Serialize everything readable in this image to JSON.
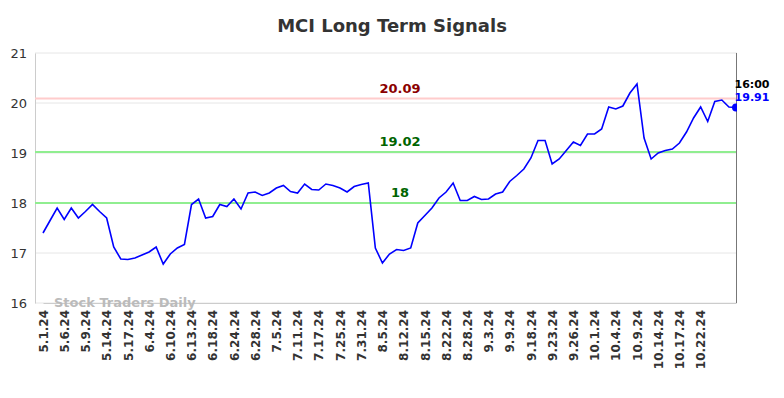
{
  "chart_data": {
    "type": "line",
    "title": "MCI Long Term Signals",
    "watermark": "Stock Traders Daily",
    "last_time": "16:00",
    "color": "#0000ff",
    "categories": [
      "5.1.24",
      null,
      null,
      "5.6.24",
      null,
      null,
      "5.9.24",
      null,
      null,
      "5.14.24",
      null,
      null,
      "5.17.24",
      null,
      null,
      "6.4.24",
      null,
      null,
      "6.10.24",
      null,
      null,
      "6.13.24",
      null,
      null,
      "6.18.24",
      null,
      null,
      "6.24.24",
      null,
      null,
      "6.28.24",
      null,
      null,
      "7.5.24",
      null,
      null,
      "7.11.24",
      null,
      null,
      "7.17.24",
      null,
      null,
      "7.25.24",
      null,
      null,
      "7.31.24",
      null,
      null,
      "8.5.24",
      null,
      null,
      "8.12.24",
      null,
      null,
      "8.15.24",
      null,
      null,
      "8.22.24",
      null,
      null,
      "8.28.24",
      null,
      null,
      "9.3.24",
      null,
      null,
      "9.9.24",
      null,
      null,
      "9.18.24",
      null,
      null,
      "9.23.24",
      null,
      null,
      "9.26.24",
      null,
      null,
      "10.1.24",
      null,
      null,
      "10.4.24",
      null,
      null,
      "10.9.24",
      null,
      null,
      "10.14.24",
      null,
      null,
      "10.17.24",
      null,
      null,
      "10.22.24",
      null,
      null,
      null,
      null,
      null
    ],
    "values": [
      17.4,
      17.65,
      17.9,
      17.67,
      17.9,
      17.7,
      17.83,
      17.97,
      17.83,
      17.7,
      17.12,
      16.88,
      16.87,
      16.9,
      16.96,
      17.02,
      17.12,
      16.78,
      16.98,
      17.1,
      17.17,
      17.97,
      18.08,
      17.7,
      17.73,
      17.97,
      17.93,
      18.08,
      17.88,
      18.2,
      18.22,
      18.15,
      18.2,
      18.3,
      18.35,
      18.23,
      18.2,
      18.38,
      18.27,
      18.26,
      18.38,
      18.35,
      18.3,
      18.22,
      18.33,
      18.37,
      18.4,
      17.1,
      16.8,
      16.98,
      17.07,
      17.05,
      17.1,
      17.6,
      17.75,
      17.9,
      18.1,
      18.22,
      18.4,
      18.05,
      18.05,
      18.13,
      18.07,
      18.08,
      18.18,
      18.22,
      18.43,
      18.55,
      18.68,
      18.9,
      19.25,
      19.25,
      18.78,
      18.88,
      19.05,
      19.22,
      19.15,
      19.38,
      19.38,
      19.48,
      19.92,
      19.88,
      19.94,
      20.2,
      20.38,
      19.3,
      18.88,
      19.0,
      19.05,
      19.08,
      19.2,
      19.42,
      19.7,
      19.92,
      19.63,
      20.03,
      20.06,
      19.92,
      19.91
    ],
    "levels": [
      {
        "value": 20.09,
        "color": "#ffcccc"
      },
      {
        "value": 19.02,
        "color": "#90ee90"
      },
      {
        "value": 18,
        "color": "#90ee90"
      }
    ],
    "ylim": [
      16,
      21
    ],
    "yticks": [
      16,
      17,
      18,
      19,
      20,
      21
    ],
    "grid": true
  }
}
